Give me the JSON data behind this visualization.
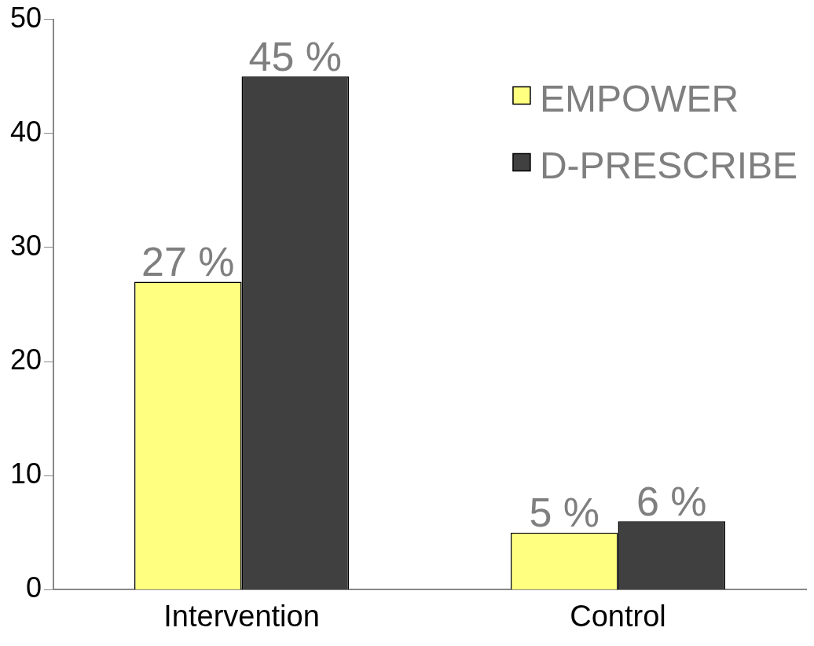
{
  "chart_data": {
    "type": "bar",
    "categories": [
      "Intervention",
      "Control"
    ],
    "series": [
      {
        "name": "EMPOWER",
        "color": "#ffff80",
        "values": [
          27,
          5
        ],
        "value_labels": [
          "27 %",
          "5 %"
        ]
      },
      {
        "name": "D-PRESCRIBE",
        "color": "#404040",
        "values": [
          45,
          6
        ],
        "value_labels": [
          "45 %",
          "6 %"
        ]
      }
    ],
    "ylim": [
      0,
      50
    ],
    "yticks": [
      0,
      10,
      20,
      30,
      40,
      50
    ],
    "grid": false,
    "legend": "top right"
  }
}
